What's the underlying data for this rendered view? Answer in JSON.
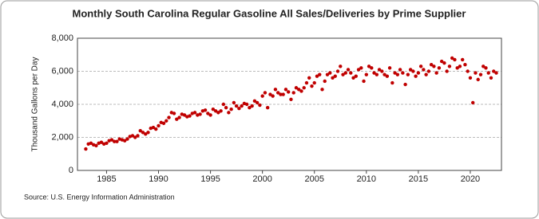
{
  "chart_data": {
    "type": "scatter",
    "title": "Monthly South Carolina Regular Gasoline All Sales/Deliveries by Prime Supplier",
    "y_label": "Thousand Gallons per Day",
    "source": "Source: U.S. Energy Information Administration",
    "color": "#c00000",
    "xlim": [
      1982.2,
      2023
    ],
    "xticks": [
      1985,
      1990,
      1995,
      2000,
      2005,
      2010,
      2015,
      2020
    ],
    "ylim": [
      0,
      8000
    ],
    "yticks": [
      0,
      {
        "value": 2000,
        "label": "2,000"
      },
      {
        "value": 4000,
        "label": "4,000"
      },
      {
        "value": 6000,
        "label": "6,000"
      },
      {
        "value": 8000,
        "label": "8,000"
      }
    ],
    "grid": true,
    "x": [
      1983,
      1983.25,
      1983.5,
      1983.75,
      1984,
      1984.25,
      1984.5,
      1984.75,
      1985,
      1985.25,
      1985.5,
      1985.75,
      1986,
      1986.25,
      1986.5,
      1986.75,
      1987,
      1987.25,
      1987.5,
      1987.75,
      1988,
      1988.25,
      1988.5,
      1988.75,
      1989,
      1989.25,
      1989.5,
      1989.75,
      1990,
      1990.25,
      1990.5,
      1990.75,
      1991,
      1991.25,
      1991.5,
      1991.75,
      1992,
      1992.25,
      1992.5,
      1992.75,
      1993,
      1993.25,
      1993.5,
      1993.75,
      1994,
      1994.25,
      1994.5,
      1994.75,
      1995,
      1995.25,
      1995.5,
      1995.75,
      1996,
      1996.25,
      1996.5,
      1996.75,
      1997,
      1997.25,
      1997.5,
      1997.75,
      1998,
      1998.25,
      1998.5,
      1998.75,
      1999,
      1999.25,
      1999.5,
      1999.75,
      2000,
      2000.25,
      2000.5,
      2000.75,
      2001,
      2001.25,
      2001.5,
      2001.75,
      2002,
      2002.25,
      2002.5,
      2002.75,
      2003,
      2003.25,
      2003.5,
      2003.75,
      2004,
      2004.25,
      2004.5,
      2004.75,
      2005,
      2005.25,
      2005.5,
      2005.75,
      2006,
      2006.25,
      2006.5,
      2006.75,
      2007,
      2007.25,
      2007.5,
      2007.75,
      2008,
      2008.25,
      2008.5,
      2008.75,
      2009,
      2009.25,
      2009.5,
      2009.75,
      2010,
      2010.25,
      2010.5,
      2010.75,
      2011,
      2011.25,
      2011.5,
      2011.75,
      2012,
      2012.25,
      2012.5,
      2012.75,
      2013,
      2013.25,
      2013.5,
      2013.75,
      2014,
      2014.25,
      2014.5,
      2014.75,
      2015,
      2015.25,
      2015.5,
      2015.75,
      2016,
      2016.25,
      2016.5,
      2016.75,
      2017,
      2017.25,
      2017.5,
      2017.75,
      2018,
      2018.25,
      2018.5,
      2018.75,
      2019,
      2019.25,
      2019.5,
      2019.75,
      2020,
      2020.25,
      2020.5,
      2020.75,
      2021,
      2021.25,
      2021.5,
      2021.75,
      2022,
      2022.25,
      2022.5
    ],
    "values": [
      1300,
      1600,
      1650,
      1550,
      1500,
      1650,
      1700,
      1600,
      1650,
      1800,
      1850,
      1750,
      1750,
      1900,
      1850,
      1800,
      1900,
      2050,
      2100,
      2000,
      2100,
      2400,
      2300,
      2200,
      2300,
      2550,
      2600,
      2500,
      2700,
      2900,
      2850,
      3000,
      3200,
      3500,
      3450,
      3100,
      3200,
      3400,
      3350,
      3250,
      3300,
      3450,
      3500,
      3350,
      3400,
      3600,
      3650,
      3450,
      3350,
      3700,
      3600,
      3500,
      3600,
      4000,
      3800,
      3500,
      3700,
      4100,
      3900,
      3750,
      3900,
      4050,
      4000,
      3800,
      3900,
      4200,
      4100,
      3950,
      4500,
      4700,
      3800,
      4600,
      4500,
      4900,
      4700,
      4600,
      4600,
      4900,
      4750,
      4300,
      4700,
      5000,
      4900,
      4800,
      5000,
      5300,
      5600,
      5100,
      5300,
      5700,
      5800,
      4900,
      5400,
      5800,
      5900,
      5600,
      5700,
      6000,
      6300,
      5800,
      5900,
      6100,
      5900,
      5600,
      5700,
      6100,
      6200,
      5400,
      5800,
      6300,
      6200,
      5900,
      5800,
      6100,
      6000,
      5800,
      5700,
      6200,
      5300,
      5900,
      5800,
      6100,
      5900,
      5200,
      5800,
      6100,
      6000,
      5700,
      5900,
      6300,
      6100,
      5800,
      6000,
      6400,
      6300,
      5900,
      6200,
      6600,
      6500,
      6000,
      6300,
      6800,
      6700,
      6200,
      6300,
      6700,
      6400,
      6000,
      5600,
      4100,
      5900,
      5500,
      5800,
      6300,
      6200,
      5900,
      5600,
      6000,
      5900
    ]
  }
}
